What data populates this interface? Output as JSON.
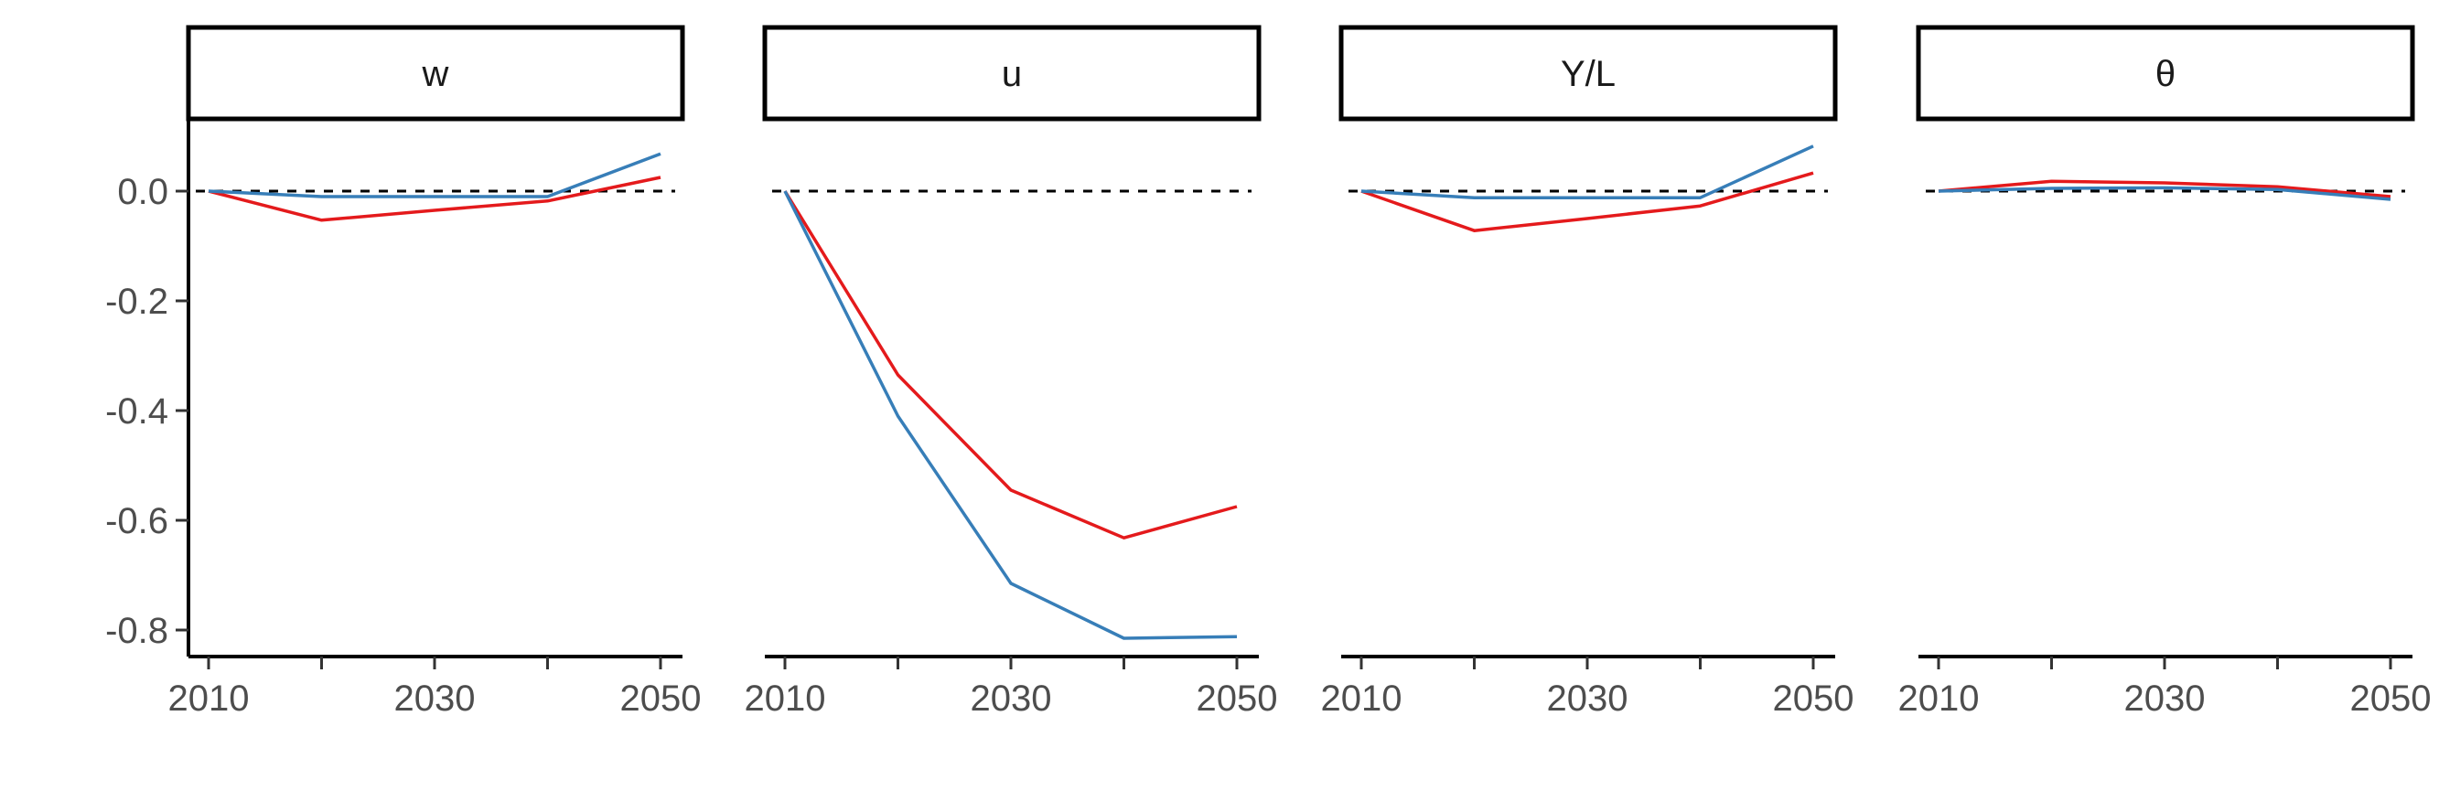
{
  "chart_data": {
    "type": "line",
    "layout": "faceted",
    "x": [
      2010,
      2020,
      2030,
      2040,
      2050
    ],
    "xlim": [
      2010,
      2050
    ],
    "x_ticks": [
      2010,
      2020,
      2030,
      2040,
      2050
    ],
    "x_tick_labels": [
      "2010",
      "",
      "2030",
      "",
      "2050"
    ],
    "ylim": [
      -0.8,
      0.0
    ],
    "y_ticks": [
      0.0,
      -0.2,
      -0.4,
      -0.6,
      -0.8
    ],
    "y_tick_labels": [
      "0.0",
      "-0.2",
      "-0.4",
      "-0.6",
      "-0.8"
    ],
    "reference_line": {
      "y": 0.0,
      "style": "dashed"
    },
    "legend": "none",
    "series_colors": {
      "red": "#e41a1c",
      "blue": "#377eb8"
    },
    "facets": [
      {
        "label": "w",
        "series": [
          {
            "name": "red",
            "color": "#e41a1c",
            "values": [
              0.0,
              -0.053,
              -0.035,
              -0.018,
              0.025
            ]
          },
          {
            "name": "blue",
            "color": "#377eb8",
            "values": [
              0.0,
              -0.01,
              -0.01,
              -0.01,
              0.068
            ]
          }
        ]
      },
      {
        "label": "u",
        "series": [
          {
            "name": "red",
            "color": "#e41a1c",
            "values": [
              0.0,
              -0.335,
              -0.545,
              -0.632,
              -0.575
            ]
          },
          {
            "name": "blue",
            "color": "#377eb8",
            "values": [
              0.0,
              -0.41,
              -0.715,
              -0.815,
              -0.812
            ]
          }
        ]
      },
      {
        "label": "Y/L",
        "series": [
          {
            "name": "red",
            "color": "#e41a1c",
            "values": [
              0.0,
              -0.072,
              -0.05,
              -0.027,
              0.033
            ]
          },
          {
            "name": "blue",
            "color": "#377eb8",
            "values": [
              0.0,
              -0.012,
              -0.012,
              -0.012,
              0.082
            ]
          }
        ]
      },
      {
        "label": "θ",
        "series": [
          {
            "name": "red",
            "color": "#e41a1c",
            "values": [
              0.0,
              0.018,
              0.015,
              0.008,
              -0.01
            ]
          },
          {
            "name": "blue",
            "color": "#377eb8",
            "values": [
              0.0,
              0.005,
              0.006,
              0.003,
              -0.015
            ]
          }
        ]
      }
    ]
  }
}
